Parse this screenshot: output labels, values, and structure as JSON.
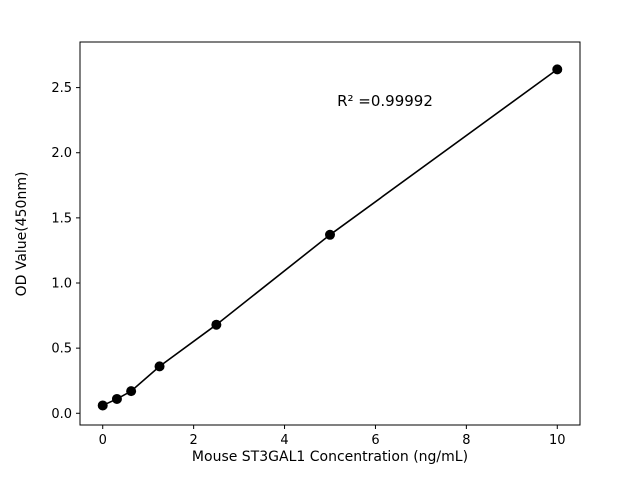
{
  "figure": {
    "background": "#ffffff"
  },
  "chart_data": {
    "type": "scatter",
    "title": "",
    "xlabel": "Mouse ST3GAL1 Concentration (ng/mL)",
    "ylabel": "OD Value(450nm)",
    "annotation": "R² =0.99992",
    "x": [
      0,
      0.3125,
      0.625,
      1.25,
      2.5,
      5,
      10
    ],
    "y": [
      0.06,
      0.11,
      0.17,
      0.36,
      0.68,
      1.37,
      2.64
    ],
    "xlim": [
      -0.5,
      10.5
    ],
    "ylim": [
      -0.09,
      2.85
    ],
    "xticks": [
      0,
      2,
      4,
      6,
      8,
      10
    ],
    "xtick_labels": [
      "0",
      "2",
      "4",
      "6",
      "8",
      "10"
    ],
    "yticks": [
      0.0,
      0.5,
      1.0,
      1.5,
      2.0,
      2.5
    ],
    "ytick_labels": [
      "0.0",
      "0.5",
      "1.0",
      "1.5",
      "2.0",
      "2.5"
    ],
    "line_color": "#000000",
    "marker_color": "#000000",
    "marker_radius": 5,
    "grid": false,
    "legend_position": "none"
  }
}
